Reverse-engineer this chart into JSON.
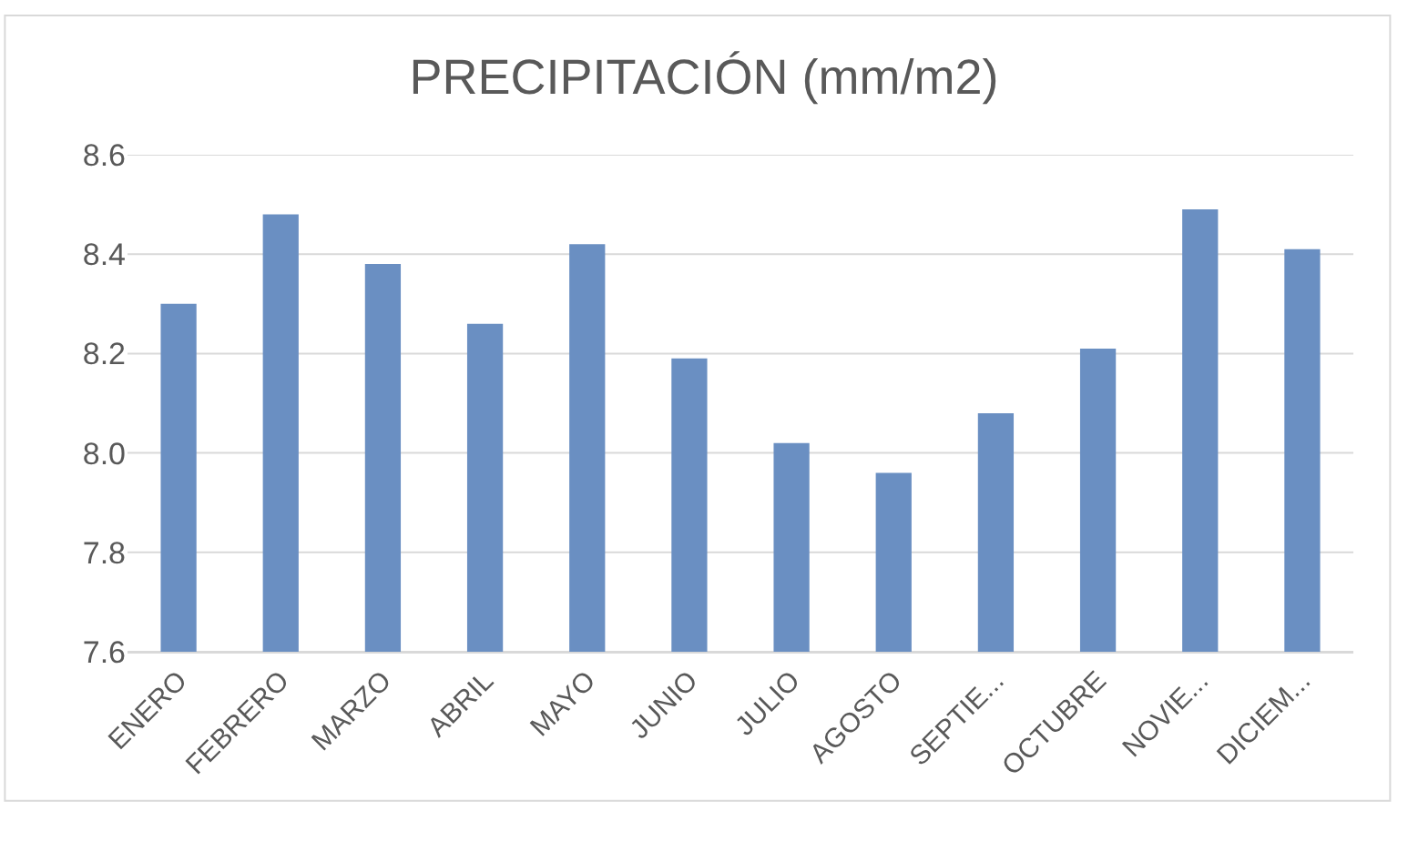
{
  "chart_data": {
    "type": "bar",
    "title": "PRECIPITACIÓN (mm/m2)",
    "categories": [
      "ENERO",
      "FEBRERO",
      "MARZO",
      "ABRIL",
      "MAYO",
      "JUNIO",
      "JULIO",
      "AGOSTO",
      "SEPTIE...",
      "OCTUBRE",
      "NOVIE...",
      "DICIEM..."
    ],
    "values": [
      8.3,
      8.48,
      8.38,
      8.26,
      8.42,
      8.19,
      8.02,
      7.96,
      8.08,
      8.21,
      8.49,
      8.41
    ],
    "color": "#6a8fc2",
    "ylim": [
      7.6,
      8.6
    ],
    "yticks": [
      7.6,
      7.8,
      {
        "value": 8,
        "label": "8.0"
      },
      8.2,
      8.4,
      8.6
    ],
    "grid": "y"
  }
}
